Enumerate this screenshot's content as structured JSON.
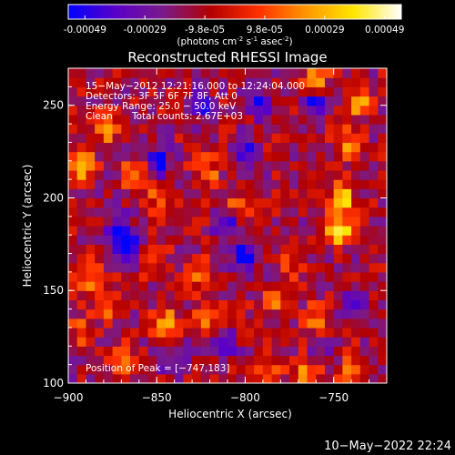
{
  "colorbar": {
    "ticks": [
      "-0.00049",
      "-0.00029",
      "-9.8e-05",
      "9.8e-05",
      "0.00029",
      "0.00049"
    ],
    "units_prefix": "(photons cm",
    "units_sup1": "-2",
    "units_mid": " s",
    "units_sup2": "-1",
    "units_mid2": " asec",
    "units_sup3": "-2",
    "units_suffix": ")",
    "colors": [
      "#0000ff",
      "#5a00c8",
      "#7a1a8a",
      "#b40000",
      "#ff3000",
      "#ff9600",
      "#ffe600",
      "#ffffff"
    ]
  },
  "chart_data": {
    "type": "heatmap",
    "title": "Reconstructed RHESSI Image",
    "xlabel": "Heliocentric X (arcsec)",
    "ylabel": "Heliocentric Y (arcsec)",
    "xlim": [
      -900,
      -720
    ],
    "ylim": [
      100,
      270
    ],
    "x_ticks": [
      -900,
      -850,
      -800,
      -750
    ],
    "y_ticks": [
      100,
      150,
      200,
      250
    ],
    "x_tick_labels": [
      "−900",
      "−850",
      "−800",
      "−750"
    ],
    "y_tick_labels": [
      "100",
      "150",
      "200",
      "250"
    ],
    "value_range": [
      -0.00049,
      0.00049
    ],
    "peak": [
      -747,
      183
    ],
    "hotspots": [
      {
        "x": -747,
        "y": 183,
        "v": 1.0
      },
      {
        "x": -745,
        "y": 200,
        "v": 0.75
      },
      {
        "x": -742,
        "y": 228,
        "v": 0.7
      },
      {
        "x": -735,
        "y": 252,
        "v": 0.65
      },
      {
        "x": -760,
        "y": 265,
        "v": 0.6
      },
      {
        "x": -893,
        "y": 218,
        "v": 0.8
      },
      {
        "x": -878,
        "y": 238,
        "v": 0.6
      },
      {
        "x": -862,
        "y": 213,
        "v": 0.65
      },
      {
        "x": -848,
        "y": 200,
        "v": 0.5
      },
      {
        "x": -822,
        "y": 215,
        "v": 0.55
      },
      {
        "x": -805,
        "y": 195,
        "v": 0.5
      },
      {
        "x": -852,
        "y": 168,
        "v": 0.55
      },
      {
        "x": -828,
        "y": 160,
        "v": 0.45
      },
      {
        "x": -890,
        "y": 158,
        "v": 0.55
      },
      {
        "x": -878,
        "y": 143,
        "v": 0.6
      },
      {
        "x": -845,
        "y": 133,
        "v": 0.6
      },
      {
        "x": -822,
        "y": 135,
        "v": 0.45
      },
      {
        "x": -892,
        "y": 128,
        "v": 0.45
      },
      {
        "x": -868,
        "y": 112,
        "v": 0.5
      },
      {
        "x": -786,
        "y": 108,
        "v": 0.5
      },
      {
        "x": -765,
        "y": 104,
        "v": 0.7
      },
      {
        "x": -740,
        "y": 108,
        "v": 0.6
      },
      {
        "x": -785,
        "y": 145,
        "v": 0.45
      },
      {
        "x": -760,
        "y": 135,
        "v": 0.5
      },
      {
        "x": -775,
        "y": 165,
        "v": 0.4
      }
    ],
    "coldspots": [
      {
        "x": -868,
        "y": 175,
        "v": -0.75
      },
      {
        "x": -872,
        "y": 185,
        "v": -0.6
      },
      {
        "x": -848,
        "y": 220,
        "v": -0.65
      },
      {
        "x": -800,
        "y": 168,
        "v": -0.7
      },
      {
        "x": -810,
        "y": 185,
        "v": -0.6
      },
      {
        "x": -793,
        "y": 253,
        "v": -0.6
      },
      {
        "x": -760,
        "y": 252,
        "v": -0.55
      },
      {
        "x": -825,
        "y": 250,
        "v": -0.5
      },
      {
        "x": -800,
        "y": 225,
        "v": -0.5
      },
      {
        "x": -738,
        "y": 145,
        "v": -0.5
      },
      {
        "x": -840,
        "y": 112,
        "v": -0.45
      },
      {
        "x": -812,
        "y": 120,
        "v": -0.45
      },
      {
        "x": -755,
        "y": 120,
        "v": -0.35
      }
    ]
  },
  "annotation": {
    "line1": "15−May−2012 12:21:16.000 to 12:24:04.000",
    "line2": "Detectors: 3F 5F 6F 7F 8F, Att 0",
    "line3": "Energy Range: 25.0 − 50.0 keV",
    "line4_a": "Clean",
    "line4_b": "Total counts: 2.67E+03",
    "peak_label": "Position of Peak = [−747,183]"
  },
  "footer": {
    "timestamp": "10−May−2022 22:24"
  }
}
